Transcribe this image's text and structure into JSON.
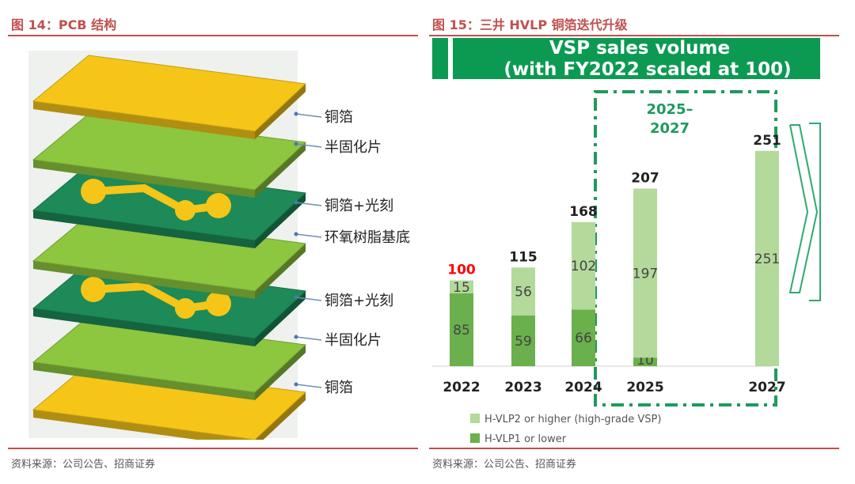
{
  "left_figure": {
    "title": "图 14：PCB 结构",
    "source": "资料来源：公司公告、招商证券",
    "layers": [
      "铜箔",
      "半固化片",
      "铜箔+光刻",
      "环氧树脂基底",
      "铜箔+光刻",
      "半固化片",
      "铜箔"
    ],
    "colors": {
      "copper": "#f5c518",
      "prepreg": "#8dc63f",
      "substrate": "#1d8a57",
      "trace": "#f5c518"
    }
  },
  "right_figure": {
    "title": "图 15：三井 HVLP 铜箔迭代升级",
    "source": "资料来源：公司公告、招商证券",
    "banner": {
      "line1": "VSP sales volume",
      "line2": "(with FY2022 scaled at 100)"
    },
    "forecast_period": {
      "line1": "2025–",
      "line2": "2027"
    }
  },
  "chart_data": {
    "type": "bar",
    "stacked": true,
    "categories": [
      "2022",
      "2023",
      "2024",
      "2025",
      "2027"
    ],
    "series": [
      {
        "name": "H-VLP1 or lower",
        "values": [
          85,
          59,
          66,
          10,
          null
        ],
        "color": "#6ab04c"
      },
      {
        "name": "H-VLP2 or higher (high-grade VSP)",
        "values": [
          15,
          56,
          102,
          197,
          251
        ],
        "color": "#b3d99b"
      }
    ],
    "totals": [
      100,
      115,
      168,
      207,
      251
    ],
    "total_colors": [
      "#ff0000",
      "#222222",
      "#222222",
      "#222222",
      "#222222"
    ],
    "ylim": [
      0,
      260
    ],
    "grid": false,
    "legend_placement": "bottom-left"
  }
}
